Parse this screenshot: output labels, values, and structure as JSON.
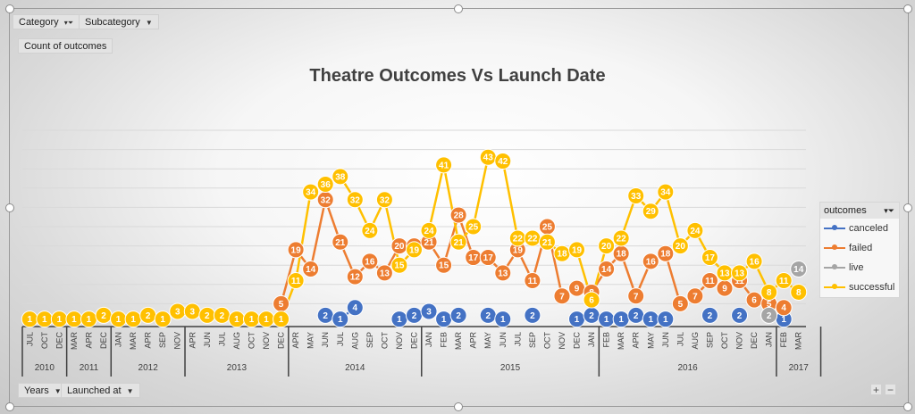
{
  "filters": {
    "category_label": "Category",
    "subcategory_label": "Subcategory",
    "value_field_label": "Count of outcomes",
    "years_label": "Years",
    "launched_label": "Launched at"
  },
  "legend": {
    "title": "outcomes",
    "items": [
      {
        "name": "canceled",
        "color": "#4472C4"
      },
      {
        "name": "failed",
        "color": "#ED7D31"
      },
      {
        "name": "live",
        "color": "#A5A5A5"
      },
      {
        "name": "successful",
        "color": "#FFC000"
      }
    ]
  },
  "zoom": {
    "plus": "+",
    "minus": "−"
  },
  "chart_data": {
    "type": "line",
    "title": "Theatre Outcomes Vs Launch Date",
    "xlabel": "",
    "ylabel": "",
    "ylim": [
      0,
      50
    ],
    "grid": true,
    "legend_position": "right",
    "years": [
      {
        "label": "2010",
        "count": 3
      },
      {
        "label": "2011",
        "count": 3
      },
      {
        "label": "2012",
        "count": 5
      },
      {
        "label": "2013",
        "count": 7
      },
      {
        "label": "2014",
        "count": 9
      },
      {
        "label": "2015",
        "count": 12
      },
      {
        "label": "2016",
        "count": 12
      },
      {
        "label": "2017",
        "count": 3
      }
    ],
    "categories": [
      "JUL",
      "OCT",
      "DEC",
      "MAR",
      "APR",
      "DEC",
      "JAN",
      "MAR",
      "APR",
      "SEP",
      "NOV",
      "APR",
      "JUN",
      "JUL",
      "AUG",
      "OCT",
      "NOV",
      "DEC",
      "APR",
      "MAY",
      "JUN",
      "JUL",
      "AUG",
      "SEP",
      "OCT",
      "NOV",
      "DEC",
      "JAN",
      "FEB",
      "MAR",
      "APR",
      "MAY",
      "JUN",
      "JUL",
      "SEP",
      "OCT",
      "NOV",
      "DEC",
      "JAN",
      "FEB",
      "MAR",
      "APR",
      "MAY",
      "JUN",
      "JUL",
      "AUG",
      "SEP",
      "OCT",
      "NOV",
      "DEC",
      "JAN",
      "FEB",
      "MAR"
    ],
    "series": [
      {
        "name": "canceled",
        "color": "#4472C4",
        "values": [
          null,
          null,
          null,
          null,
          null,
          null,
          null,
          null,
          null,
          null,
          null,
          null,
          null,
          null,
          null,
          null,
          null,
          null,
          null,
          null,
          2,
          1,
          4,
          null,
          null,
          1,
          2,
          3,
          1,
          2,
          null,
          2,
          1,
          null,
          2,
          null,
          null,
          1,
          2,
          1,
          1,
          2,
          1,
          1,
          null,
          null,
          2,
          null,
          2,
          null,
          null,
          1,
          null
        ]
      },
      {
        "name": "failed",
        "color": "#ED7D31",
        "values": [
          null,
          null,
          null,
          null,
          null,
          null,
          null,
          null,
          null,
          null,
          null,
          null,
          null,
          null,
          null,
          null,
          null,
          5,
          19,
          14,
          32,
          21,
          12,
          16,
          13,
          20,
          20,
          21,
          15,
          28,
          17,
          17,
          13,
          19,
          11,
          25,
          7,
          9,
          8,
          14,
          18,
          7,
          16,
          18,
          5,
          7,
          11,
          9,
          11,
          6,
          5,
          4,
          null
        ]
      },
      {
        "name": "live",
        "color": "#A5A5A5",
        "values": [
          null,
          null,
          null,
          null,
          null,
          null,
          null,
          null,
          null,
          null,
          null,
          null,
          null,
          null,
          null,
          null,
          null,
          null,
          null,
          null,
          null,
          null,
          null,
          null,
          null,
          null,
          null,
          null,
          null,
          null,
          null,
          null,
          null,
          null,
          null,
          null,
          null,
          null,
          null,
          null,
          null,
          null,
          null,
          null,
          null,
          null,
          null,
          null,
          null,
          null,
          2,
          null,
          14
        ]
      },
      {
        "name": "successful",
        "color": "#FFC000",
        "values": [
          1,
          1,
          1,
          1,
          1,
          2,
          1,
          1,
          2,
          1,
          3,
          3,
          2,
          2,
          1,
          1,
          1,
          1,
          11,
          34,
          36,
          38,
          32,
          24,
          32,
          15,
          19,
          24,
          41,
          21,
          25,
          43,
          42,
          22,
          22,
          21,
          18,
          19,
          6,
          20,
          22,
          33,
          29,
          34,
          20,
          24,
          17,
          13,
          13,
          16,
          8,
          11,
          8
        ]
      }
    ]
  }
}
